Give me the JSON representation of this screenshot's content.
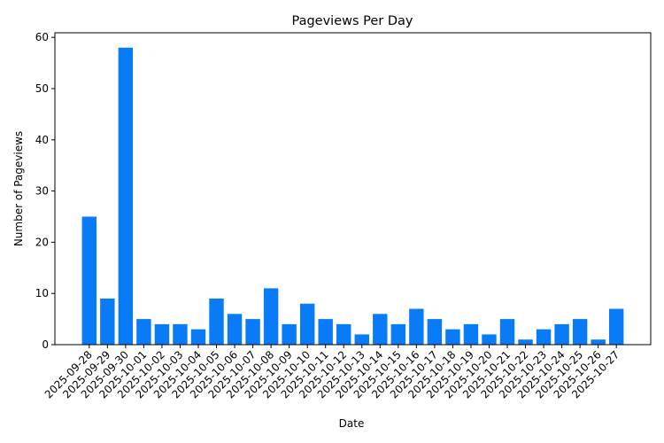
{
  "chart_data": {
    "type": "bar",
    "title": "Pageviews Per Day",
    "x_label": "Date",
    "y_label": "Number of Pageviews",
    "categories": [
      "2025-09-28",
      "2025-09-29",
      "2025-09-30",
      "2025-10-01",
      "2025-10-02",
      "2025-10-03",
      "2025-10-04",
      "2025-10-05",
      "2025-10-06",
      "2025-10-07",
      "2025-10-08",
      "2025-10-09",
      "2025-10-10",
      "2025-10-11",
      "2025-10-12",
      "2025-10-13",
      "2025-10-14",
      "2025-10-15",
      "2025-10-16",
      "2025-10-17",
      "2025-10-18",
      "2025-10-19",
      "2025-10-20",
      "2025-10-21",
      "2025-10-22",
      "2025-10-23",
      "2025-10-24",
      "2025-10-25",
      "2025-10-26",
      "2025-10-27"
    ],
    "values": [
      25,
      9,
      58,
      5,
      4,
      4,
      3,
      9,
      6,
      5,
      11,
      4,
      8,
      5,
      4,
      2,
      6,
      4,
      7,
      5,
      3,
      4,
      2,
      5,
      1,
      3,
      4,
      5,
      1,
      7
    ],
    "color": "#0a7bf7",
    "ylim": [
      0,
      60.9
    ],
    "yticks": [
      0,
      10,
      20,
      30,
      40,
      50,
      60
    ],
    "grid": false
  }
}
